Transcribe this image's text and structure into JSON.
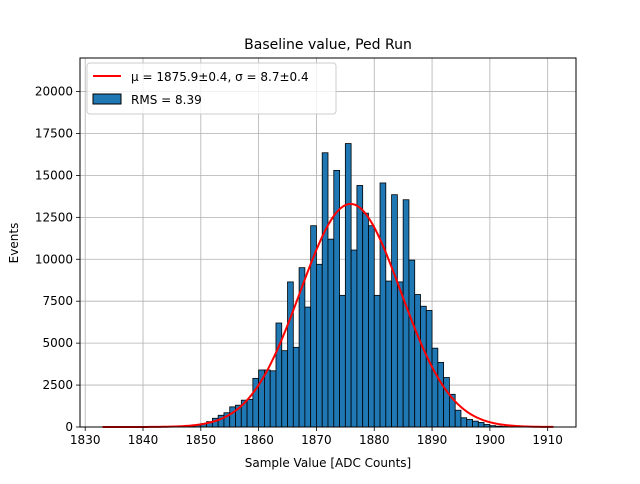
{
  "chart_data": {
    "type": "bar",
    "title": "Baseline value, Ped Run",
    "xlabel": "Sample Value [ADC Counts]",
    "ylabel": "Events",
    "xlim": [
      1829.1,
      1914.9
    ],
    "ylim": [
      0,
      22000
    ],
    "grid": true,
    "legend_position": "top-left",
    "x_ticks": [
      1830,
      1840,
      1850,
      1860,
      1870,
      1880,
      1890,
      1900,
      1910
    ],
    "y_ticks": [
      0,
      2500,
      5000,
      7500,
      10000,
      12500,
      15000,
      17500,
      20000
    ],
    "legend": {
      "fit_label": "μ = 1875.9±0.4, σ = 8.7±0.4",
      "hist_label": "RMS = 8.39"
    },
    "colors": {
      "bar_fill": "#1f77b4",
      "bar_edge": "#000000",
      "fit_line": "#ff0000",
      "grid": "#b0b0b0"
    },
    "histogram": {
      "bin_width": 1,
      "bins_left": [
        1833,
        1834,
        1835,
        1836,
        1837,
        1838,
        1839,
        1840,
        1841,
        1842,
        1843,
        1844,
        1845,
        1846,
        1847,
        1848,
        1849,
        1850,
        1851,
        1852,
        1853,
        1854,
        1855,
        1856,
        1857,
        1858,
        1859,
        1860,
        1861,
        1862,
        1863,
        1864,
        1865,
        1866,
        1867,
        1868,
        1869,
        1870,
        1871,
        1872,
        1873,
        1874,
        1875,
        1876,
        1877,
        1878,
        1879,
        1880,
        1881,
        1882,
        1883,
        1884,
        1885,
        1886,
        1887,
        1888,
        1889,
        1890,
        1891,
        1892,
        1893,
        1894,
        1895,
        1896,
        1897,
        1898,
        1899,
        1900,
        1901,
        1902,
        1903,
        1904,
        1905,
        1906,
        1907,
        1908,
        1909,
        1910
      ],
      "counts": [
        0,
        0,
        0,
        0,
        0,
        0,
        0,
        0,
        0,
        0,
        0,
        0,
        0,
        0,
        20,
        50,
        100,
        200,
        320,
        520,
        700,
        850,
        1200,
        1300,
        1600,
        1650,
        2900,
        3400,
        3400,
        3350,
        6200,
        4550,
        8650,
        4750,
        9500,
        7150,
        12000,
        9700,
        16350,
        11200,
        15300,
        7850,
        16900,
        10550,
        14400,
        12750,
        12000,
        7850,
        14550,
        8700,
        13850,
        8650,
        13550,
        9950,
        7900,
        7200,
        6950,
        4700,
        3850,
        2950,
        1950,
        1000,
        550,
        450,
        350,
        270,
        150,
        80,
        50,
        30,
        20,
        10,
        0,
        0,
        0,
        0,
        0,
        0
      ]
    },
    "fit": {
      "type": "gaussian",
      "mu": 1875.9,
      "sigma": 8.7,
      "amplitude": 13300,
      "x_range": [
        1833,
        1911
      ]
    }
  }
}
